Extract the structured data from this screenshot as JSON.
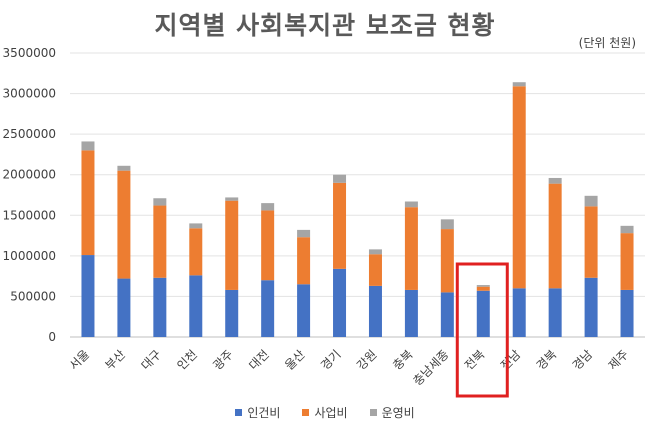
{
  "chart_data": {
    "type": "bar",
    "stacked": true,
    "title": "지역별 사회복지관 보조금 현황",
    "unit_note": "(단위 천원)",
    "categories": [
      "서울",
      "부산",
      "대구",
      "인천",
      "광주",
      "대전",
      "울산",
      "경기",
      "강원",
      "충북",
      "충남세종",
      "전북",
      "전남",
      "경북",
      "경남",
      "제주"
    ],
    "series": [
      {
        "name": "인건비",
        "color": "#4472C4",
        "values": [
          1010000,
          720000,
          730000,
          760000,
          580000,
          700000,
          650000,
          840000,
          630000,
          580000,
          550000,
          570000,
          600000,
          600000,
          730000,
          580000
        ]
      },
      {
        "name": "사업비",
        "color": "#ED7D31",
        "values": [
          1290000,
          1330000,
          890000,
          580000,
          1100000,
          860000,
          580000,
          1060000,
          390000,
          1020000,
          780000,
          50000,
          2490000,
          1290000,
          880000,
          700000
        ]
      },
      {
        "name": "운영비",
        "color": "#A5A5A5",
        "values": [
          110000,
          60000,
          90000,
          60000,
          40000,
          90000,
          90000,
          100000,
          60000,
          70000,
          120000,
          20000,
          50000,
          70000,
          130000,
          90000
        ]
      }
    ],
    "ylim": [
      0,
      3500000
    ],
    "yticks": [
      "0",
      "500000",
      "1000000",
      "1500000",
      "2000000",
      "2500000",
      "3000000",
      "3500000"
    ],
    "grid": true,
    "legend": "bottom",
    "highlighted_category": "전북",
    "highlight_color": "#E02020"
  }
}
